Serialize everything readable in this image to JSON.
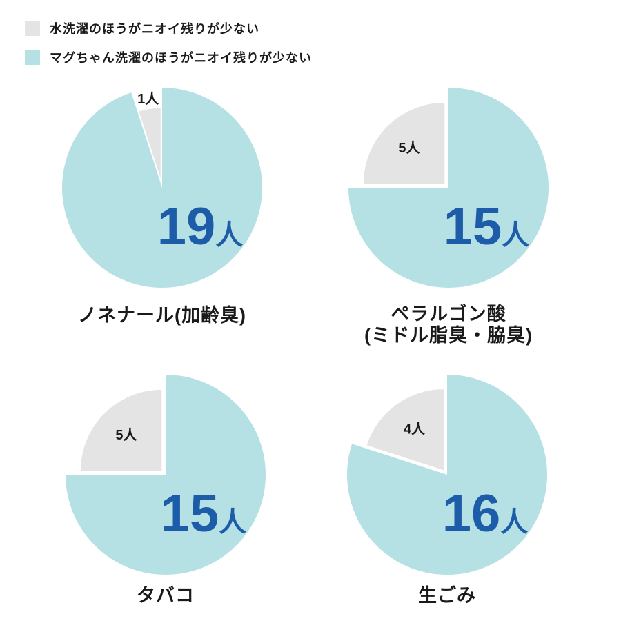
{
  "legend": {
    "items": [
      {
        "key": "water",
        "label": "水洗濯のほうがニオイ残りが少ない",
        "color": "#e4e4e4"
      },
      {
        "key": "magchan",
        "label": "マグちゃん洗濯のほうがニオイ残りが少ない",
        "color": "#b5e1e5"
      }
    ]
  },
  "chart_data": {
    "type": "pie",
    "unit": "人",
    "legend_position": "top-left",
    "series_names": [
      "マグちゃん洗濯のほうがニオイ残りが少ない",
      "水洗濯のほうがニオイ残りが少ない"
    ],
    "colors": {
      "magchan": "#b5e1e5",
      "water": "#e4e4e4",
      "count_text": "#1d5ca8",
      "label_text": "#1a1a1a"
    },
    "pies": [
      {
        "title": "ノネナール(加齢臭)",
        "magchan": 19,
        "water": 1,
        "magchan_label": "19人",
        "water_label": "1人"
      },
      {
        "title": "ペラルゴン酸\n(ミドル脂臭・脇臭)",
        "magchan": 15,
        "water": 5,
        "magchan_label": "15人",
        "water_label": "5人"
      },
      {
        "title": "タバコ",
        "magchan": 15,
        "water": 5,
        "magchan_label": "15人",
        "water_label": "5人"
      },
      {
        "title": "生ごみ",
        "magchan": 16,
        "water": 4,
        "magchan_label": "16人",
        "water_label": "4人"
      }
    ]
  }
}
